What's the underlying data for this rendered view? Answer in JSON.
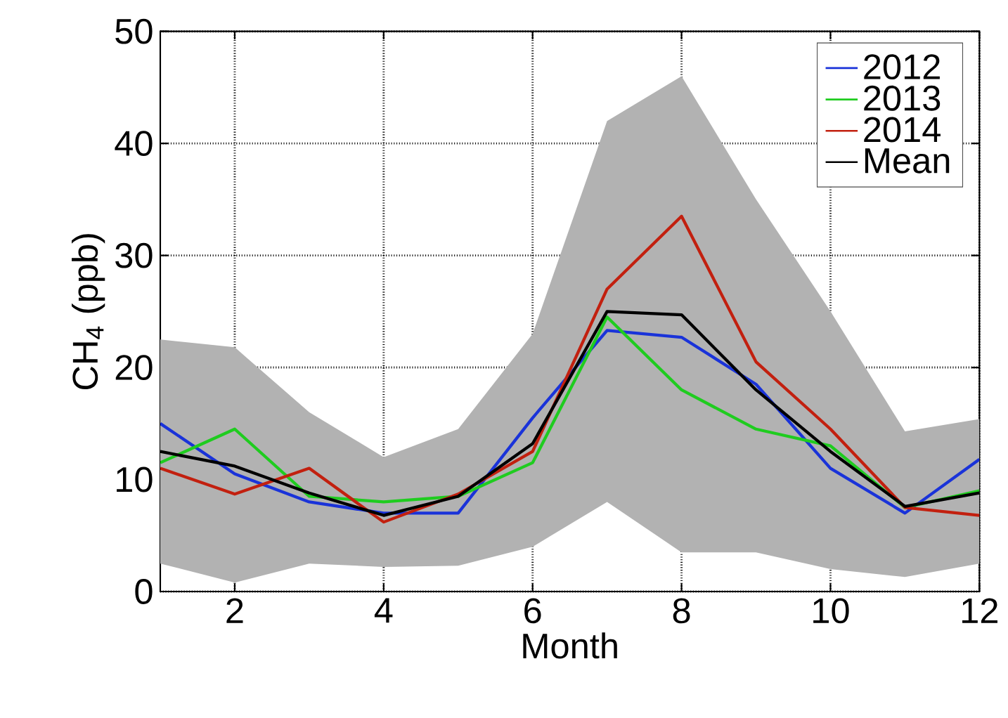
{
  "chart_data": {
    "type": "line",
    "xlabel": "Month",
    "ylabel": "CH$_{4}$ (ppb)",
    "x": [
      1,
      2,
      3,
      4,
      5,
      6,
      7,
      8,
      9,
      10,
      11,
      12
    ],
    "xlim": [
      1,
      12
    ],
    "xticks": [
      2,
      4,
      6,
      8,
      10,
      12
    ],
    "ylim": [
      0,
      50
    ],
    "yticks": [
      0,
      10,
      20,
      30,
      40,
      50
    ],
    "grid": true,
    "legend": "top right",
    "marker": "none",
    "line_style": "solid",
    "series": [
      {
        "name": "2012",
        "color": "#1a33d9",
        "values": [
          15,
          10.5,
          8,
          7,
          7,
          15.5,
          23.3,
          22.7,
          18.5,
          11,
          7,
          11.8
        ]
      },
      {
        "name": "2013",
        "color": "#1fcc1f",
        "values": [
          11.5,
          14.5,
          8.5,
          8,
          8.5,
          11.5,
          24.5,
          18,
          14.5,
          13,
          7.5,
          9
        ]
      },
      {
        "name": "2014",
        "color": "#c2200f",
        "values": [
          11,
          8.7,
          11,
          6.2,
          8.7,
          12.5,
          27,
          33.5,
          20.5,
          14.5,
          7.5,
          6.8
        ]
      },
      {
        "name": "Mean",
        "color": "#000000",
        "values": [
          12.5,
          11.2,
          8.8,
          6.8,
          8.5,
          13.2,
          25,
          24.7,
          18,
          12.5,
          7.6,
          8.8
        ],
        "lower": [
          2.5,
          0.8,
          2.5,
          2.2,
          2.3,
          4,
          8,
          3.5,
          3.5,
          2,
          1.3,
          2.5
        ],
        "upper": [
          22.5,
          21.8,
          16,
          12,
          14.5,
          23,
          42,
          46,
          35,
          25,
          14.3,
          15.4
        ]
      }
    ]
  }
}
